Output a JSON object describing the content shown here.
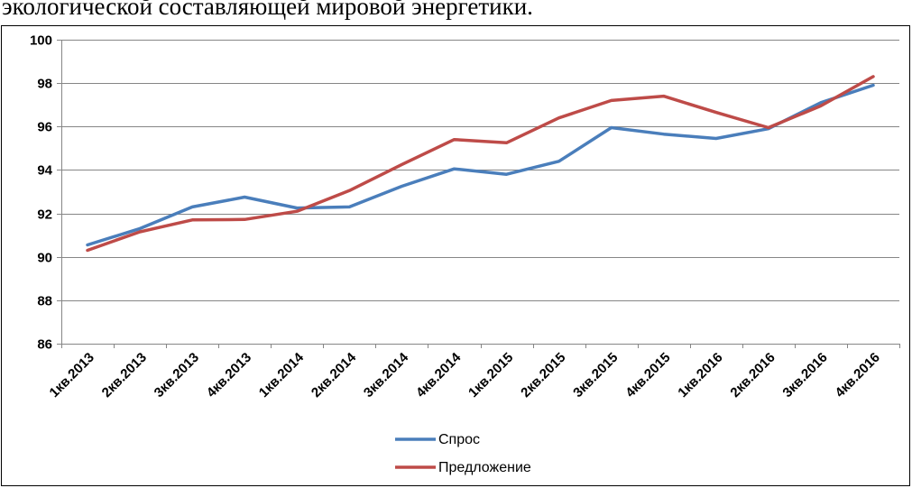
{
  "caption": "экологической составляющей мировой энергетики.",
  "chart_data": {
    "type": "line",
    "categories": [
      "1кв.2013",
      "2кв.2013",
      "3кв.2013",
      "4кв.2013",
      "1кв.2014",
      "2кв.2014",
      "3кв.2014",
      "4кв.2014",
      "1кв.2015",
      "2кв.2015",
      "3кв.2015",
      "4кв.2015",
      "1кв.2016",
      "2кв.2016",
      "3кв.2016",
      "4кв.2016"
    ],
    "series": [
      {
        "name": "Спрос",
        "color": "#4a7ebb",
        "values": [
          90.55,
          91.3,
          92.3,
          92.75,
          92.25,
          92.3,
          93.25,
          94.05,
          93.8,
          94.4,
          95.95,
          95.65,
          95.45,
          95.9,
          97.1,
          97.9
        ]
      },
      {
        "name": "Предложение",
        "color": "#be4b48",
        "values": [
          90.3,
          91.15,
          91.7,
          91.72,
          92.1,
          93.05,
          94.25,
          95.4,
          95.25,
          96.4,
          97.2,
          97.4,
          96.65,
          95.95,
          96.95,
          98.3
        ]
      }
    ],
    "y_ticks": [
      "86",
      "88",
      "90",
      "92",
      "94",
      "96",
      "98",
      "100"
    ],
    "ylim": [
      86,
      100
    ],
    "grid": true,
    "legend_position": "bottom"
  }
}
